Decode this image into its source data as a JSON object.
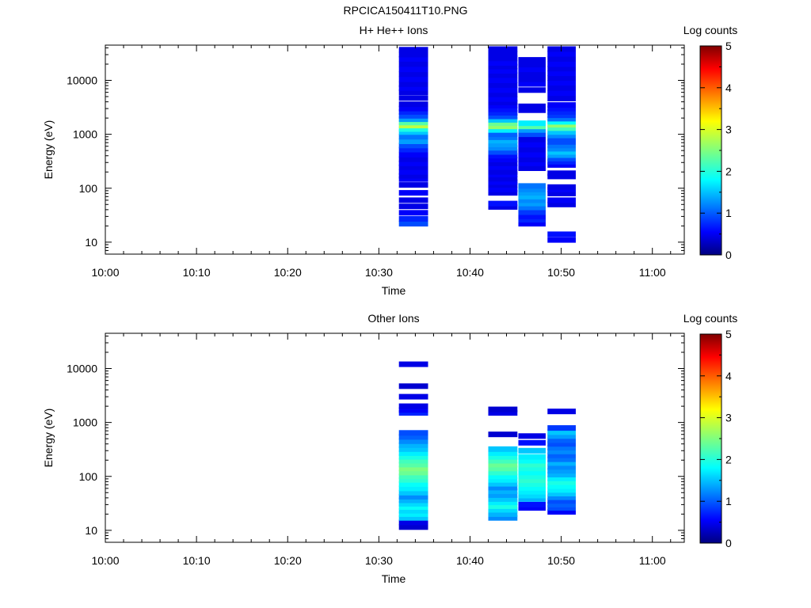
{
  "page_title": "RPCICA150411T10.PNG",
  "chart_data": [
    {
      "type": "heatmap",
      "title": "H+ He++ Ions",
      "xlabel": "Time",
      "ylabel": "Energy (eV)",
      "x_ticks": [
        "10:00",
        "10:10",
        "10:20",
        "10:30",
        "10:40",
        "10:50",
        "11:00"
      ],
      "x_range_minutes": [
        0,
        63.5
      ],
      "y_scale": "log",
      "y_ticks": [
        "10",
        "100",
        "1000",
        "10000"
      ],
      "ylim": [
        6,
        45000
      ],
      "colorbar": {
        "label": "Log counts",
        "min": 0,
        "max": 5,
        "ticks": [
          "0",
          "1",
          "2",
          "3",
          "4",
          "5"
        ]
      },
      "columns": [
        {
          "t_start": 32.2,
          "t_end": 35.4,
          "bins": [
            [
              22,
              1.0
            ],
            [
              27,
              0.8
            ],
            [
              35,
              0.6
            ],
            [
              46,
              0.5
            ],
            [
              60,
              0.5
            ],
            [
              82,
              0.6
            ],
            [
              115,
              0.5
            ],
            [
              148,
              0.6
            ],
            [
              170,
              0.5
            ],
            [
              200,
              0.6
            ],
            [
              245,
              0.5
            ],
            [
              290,
              0.6
            ],
            [
              345,
              0.5
            ],
            [
              420,
              0.6
            ],
            [
              520,
              0.8
            ],
            [
              620,
              1.0
            ],
            [
              740,
              1.4
            ],
            [
              900,
              1.2
            ],
            [
              1100,
              1.6
            ],
            [
              1250,
              2.0
            ],
            [
              1450,
              2.8
            ],
            [
              1650,
              2.3
            ],
            [
              1900,
              1.4
            ],
            [
              2200,
              1.0
            ],
            [
              2600,
              0.8
            ],
            [
              3000,
              0.6
            ],
            [
              3600,
              0.5
            ],
            [
              4700,
              0.5
            ],
            [
              6000,
              0.5
            ],
            [
              7200,
              0.6
            ],
            [
              8500,
              0.5
            ],
            [
              10500,
              0.6
            ],
            [
              13000,
              0.5
            ],
            [
              16000,
              0.6
            ],
            [
              20000,
              0.5
            ],
            [
              25000,
              0.6
            ],
            [
              30000,
              0.5
            ],
            [
              37000,
              0.5
            ]
          ]
        },
        {
          "t_start": 42.0,
          "t_end": 45.2,
          "bins": [
            [
              45,
              0.5
            ],
            [
              52,
              0.7
            ],
            [
              82,
              0.5
            ],
            [
              95,
              0.6
            ],
            [
              115,
              0.5
            ],
            [
              130,
              0.6
            ],
            [
              150,
              0.5
            ],
            [
              180,
              0.6
            ],
            [
              200,
              0.5
            ],
            [
              245,
              0.6
            ],
            [
              290,
              0.5
            ],
            [
              340,
              0.6
            ],
            [
              400,
              0.7
            ],
            [
              470,
              1.0
            ],
            [
              560,
              1.3
            ],
            [
              650,
              1.4
            ],
            [
              760,
              1.5
            ],
            [
              880,
              1.2
            ],
            [
              1000,
              1.1
            ],
            [
              1200,
              1.8
            ],
            [
              1400,
              2.6
            ],
            [
              1600,
              2.4
            ],
            [
              1850,
              1.6
            ],
            [
              2150,
              1.0
            ],
            [
              2500,
              0.8
            ],
            [
              2900,
              0.7
            ],
            [
              3400,
              0.6
            ],
            [
              3900,
              0.5
            ],
            [
              4500,
              0.6
            ],
            [
              5500,
              0.5
            ],
            [
              6600,
              0.6
            ],
            [
              8200,
              0.5
            ],
            [
              10000,
              0.6
            ],
            [
              12500,
              0.5
            ],
            [
              15000,
              0.6
            ],
            [
              18000,
              0.5
            ],
            [
              21000,
              0.6
            ],
            [
              25500,
              0.5
            ],
            [
              31000,
              0.5
            ],
            [
              38000,
              0.5
            ]
          ]
        },
        {
          "t_start": 45.3,
          "t_end": 48.3,
          "bins": [
            [
              22,
              0.6
            ],
            [
              26,
              0.8
            ],
            [
              30,
              0.7
            ],
            [
              36,
              0.9
            ],
            [
              44,
              1.2
            ],
            [
              52,
              1.4
            ],
            [
              60,
              1.3
            ],
            [
              70,
              1.5
            ],
            [
              82,
              1.4
            ],
            [
              95,
              1.3
            ],
            [
              110,
              1.2
            ],
            [
              235,
              0.5
            ],
            [
              290,
              0.6
            ],
            [
              340,
              0.5
            ],
            [
              420,
              0.6
            ],
            [
              520,
              0.5
            ],
            [
              640,
              0.6
            ],
            [
              800,
              0.5
            ],
            [
              1000,
              1.0
            ],
            [
              1200,
              1.4
            ],
            [
              1400,
              2.3
            ],
            [
              1600,
              1.8
            ],
            [
              2800,
              0.5
            ],
            [
              3300,
              0.5
            ],
            [
              6600,
              0.5
            ],
            [
              8600,
              0.6
            ],
            [
              10500,
              0.5
            ],
            [
              13000,
              0.5
            ],
            [
              16000,
              0.6
            ],
            [
              19500,
              0.5
            ],
            [
              24000,
              0.5
            ]
          ]
        },
        {
          "t_start": 48.5,
          "t_end": 51.6,
          "bins": [
            [
              11,
              0.6
            ],
            [
              14,
              0.7
            ],
            [
              50,
              0.5
            ],
            [
              60,
              0.6
            ],
            [
              80,
              0.5
            ],
            [
              95,
              0.6
            ],
            [
              105,
              0.5
            ],
            [
              165,
              0.5
            ],
            [
              190,
              0.5
            ],
            [
              270,
              0.6
            ],
            [
              310,
              0.8
            ],
            [
              355,
              1.0
            ],
            [
              410,
              1.4
            ],
            [
              470,
              1.6
            ],
            [
              540,
              1.3
            ],
            [
              620,
              1.2
            ],
            [
              720,
              1.0
            ],
            [
              830,
              1.0
            ],
            [
              950,
              1.3
            ],
            [
              1100,
              1.6
            ],
            [
              1300,
              2.2
            ],
            [
              1500,
              2.6
            ],
            [
              1700,
              1.9
            ],
            [
              1950,
              1.2
            ],
            [
              2250,
              0.9
            ],
            [
              2600,
              0.8
            ],
            [
              3000,
              0.7
            ],
            [
              3500,
              0.6
            ],
            [
              4600,
              0.5
            ],
            [
              5800,
              0.6
            ],
            [
              7200,
              0.5
            ],
            [
              9000,
              0.6
            ],
            [
              11000,
              0.5
            ],
            [
              13500,
              0.6
            ],
            [
              16500,
              0.5
            ],
            [
              20000,
              0.6
            ],
            [
              25000,
              0.5
            ],
            [
              31000,
              0.6
            ],
            [
              38000,
              0.5
            ]
          ]
        }
      ]
    },
    {
      "type": "heatmap",
      "title": "Other Ions",
      "xlabel": "Time",
      "ylabel": "Energy (eV)",
      "x_ticks": [
        "10:00",
        "10:10",
        "10:20",
        "10:30",
        "10:40",
        "10:50",
        "11:00"
      ],
      "x_range_minutes": [
        0,
        63.5
      ],
      "y_scale": "log",
      "y_ticks": [
        "10",
        "100",
        "1000",
        "10000"
      ],
      "ylim": [
        6,
        45000
      ],
      "colorbar": {
        "label": "Log counts",
        "min": 0,
        "max": 5,
        "ticks": [
          "0",
          "1",
          "2",
          "3",
          "4",
          "5"
        ]
      },
      "columns": [
        {
          "t_start": 32.2,
          "t_end": 35.4,
          "bins": [
            [
              11.5,
              0.4
            ],
            [
              14,
              0.5
            ],
            [
              17,
              1.6
            ],
            [
              20,
              1.8
            ],
            [
              23,
              1.7
            ],
            [
              27,
              1.9
            ],
            [
              31,
              1.7
            ],
            [
              36,
              1.5
            ],
            [
              42,
              1.3
            ],
            [
              50,
              1.6
            ],
            [
              60,
              1.8
            ],
            [
              72,
              1.9
            ],
            [
              86,
              2.1
            ],
            [
              100,
              2.2
            ],
            [
              118,
              2.4
            ],
            [
              140,
              2.5
            ],
            [
              165,
              2.3
            ],
            [
              195,
              2.2
            ],
            [
              230,
              2.0
            ],
            [
              270,
              1.8
            ],
            [
              320,
              1.6
            ],
            [
              380,
              1.5
            ],
            [
              450,
              1.3
            ],
            [
              540,
              1.1
            ],
            [
              640,
              1.0
            ],
            [
              1500,
              0.8
            ],
            [
              1700,
              0.6
            ],
            [
              2000,
              0.5
            ],
            [
              3000,
              0.5
            ],
            [
              4700,
              0.4
            ],
            [
              12000,
              0.5
            ]
          ]
        },
        {
          "t_start": 42.0,
          "t_end": 45.2,
          "bins": [
            [
              17,
              1.3
            ],
            [
              20,
              1.5
            ],
            [
              24,
              1.7
            ],
            [
              28,
              2.0
            ],
            [
              33,
              1.8
            ],
            [
              38,
              1.6
            ],
            [
              45,
              1.4
            ],
            [
              53,
              1.5
            ],
            [
              62,
              1.3
            ],
            [
              73,
              1.6
            ],
            [
              86,
              1.8
            ],
            [
              100,
              1.9
            ],
            [
              118,
              2.1
            ],
            [
              140,
              2.3
            ],
            [
              165,
              2.4
            ],
            [
              195,
              2.2
            ],
            [
              230,
              2.0
            ],
            [
              270,
              1.8
            ],
            [
              320,
              1.6
            ],
            [
              600,
              0.4
            ],
            [
              1500,
              0.5
            ],
            [
              1750,
              0.4
            ]
          ]
        },
        {
          "t_start": 45.3,
          "t_end": 48.3,
          "bins": [
            [
              26,
              0.6
            ],
            [
              30,
              0.7
            ],
            [
              38,
              1.5
            ],
            [
              44,
              1.7
            ],
            [
              52,
              1.8
            ],
            [
              61,
              1.9
            ],
            [
              72,
              2.0
            ],
            [
              85,
              2.1
            ],
            [
              100,
              2.0
            ],
            [
              118,
              1.9
            ],
            [
              140,
              2.0
            ],
            [
              165,
              2.1
            ],
            [
              195,
              1.9
            ],
            [
              230,
              1.8
            ],
            [
              300,
              1.6
            ],
            [
              420,
              0.7
            ],
            [
              560,
              0.5
            ]
          ]
        },
        {
          "t_start": 48.5,
          "t_end": 51.6,
          "bins": [
            [
              22,
              0.6
            ],
            [
              26,
              1.0
            ],
            [
              30,
              1.1
            ],
            [
              35,
              1.0
            ],
            [
              41,
              1.3
            ],
            [
              48,
              1.6
            ],
            [
              56,
              1.8
            ],
            [
              66,
              1.9
            ],
            [
              78,
              2.0
            ],
            [
              92,
              1.8
            ],
            [
              108,
              1.5
            ],
            [
              127,
              1.4
            ],
            [
              150,
              1.3
            ],
            [
              177,
              1.5
            ],
            [
              208,
              1.2
            ],
            [
              245,
              1.1
            ],
            [
              290,
              1.3
            ],
            [
              340,
              1.2
            ],
            [
              400,
              1.0
            ],
            [
              470,
              1.1
            ],
            [
              560,
              1.4
            ],
            [
              660,
              1.6
            ],
            [
              790,
              0.9
            ],
            [
              1600,
              0.5
            ]
          ]
        }
      ]
    }
  ]
}
